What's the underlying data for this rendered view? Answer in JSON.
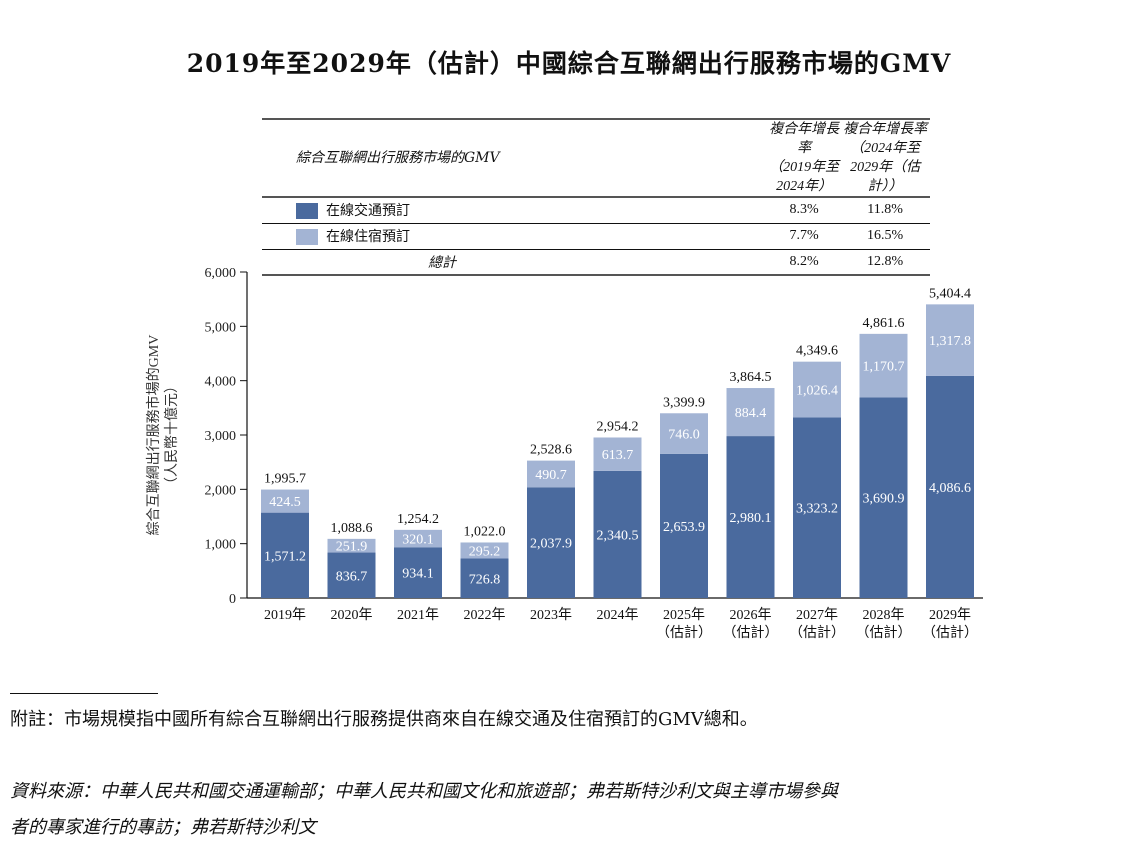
{
  "title": "2019年至2029年（估計）中國綜合互聯網出行服務市場的GMV",
  "table": {
    "headers": [
      "綜合互聯網出行服務市場的GMV",
      "複合年增長率\n（2019年至2024年）",
      "複合年增長率\n（2024年至2029年（估計））"
    ],
    "header2_line1": "複合年增長率",
    "header2_line2": "（2019年至2024年）",
    "header3_line1": "複合年增長率",
    "header3_line2": "（2024年至2029年（估計））",
    "rows": [
      {
        "label": "在線交通預訂",
        "cagr_2019_2024": "8.3%",
        "cagr_2024_2029": "11.8%",
        "color": "#4a6a9e"
      },
      {
        "label": "在線住宿預訂",
        "cagr_2019_2024": "7.7%",
        "cagr_2024_2029": "16.5%",
        "color": "#a3b4d4"
      },
      {
        "label": "總計",
        "cagr_2019_2024": "8.2%",
        "cagr_2024_2029": "12.8%"
      }
    ]
  },
  "chart_data": {
    "type": "bar",
    "stacked": true,
    "ylabel": "綜合互聯網出行服務市場的GMV",
    "ylabel_unit": "（人民幣十億元）",
    "ylim": [
      0,
      6000
    ],
    "yticks": [
      "0",
      "1,000",
      "2,000",
      "3,000",
      "4,000",
      "5,000",
      "6,000"
    ],
    "ytick_values": [
      0,
      1000,
      2000,
      3000,
      4000,
      5000,
      6000
    ],
    "categories": [
      "2019年",
      "2020年",
      "2021年",
      "2022年",
      "2023年",
      "2024年",
      "2025年",
      "2026年",
      "2027年",
      "2028年",
      "2029年"
    ],
    "category_sublabels": [
      "",
      "",
      "",
      "",
      "",
      "",
      "（估計）",
      "（估計）",
      "（估計）",
      "（估計）",
      "（估計）"
    ],
    "series": [
      {
        "name": "在線交通預訂",
        "color": "#4a6a9e",
        "values": [
          1571.2,
          836.7,
          934.1,
          726.8,
          2037.9,
          2340.5,
          2653.9,
          2980.1,
          3323.2,
          3690.9,
          4086.6
        ],
        "labels": [
          "1,571.2",
          "836.7",
          "934.1",
          "726.8",
          "2,037.9",
          "2,340.5",
          "2,653.9",
          "2,980.1",
          "3,323.2",
          "3,690.9",
          "4,086.6"
        ]
      },
      {
        "name": "在線住宿預訂",
        "color": "#a3b4d4",
        "values": [
          424.5,
          251.9,
          320.1,
          295.2,
          490.7,
          613.7,
          746.0,
          884.4,
          1026.4,
          1170.7,
          1317.8
        ],
        "labels": [
          "424.5",
          "251.9",
          "320.1",
          "295.2",
          "490.7",
          "613.7",
          "746.0",
          "884.4",
          "1,026.4",
          "1,170.7",
          "1,317.8"
        ]
      }
    ],
    "totals": [
      1995.7,
      1088.6,
      1254.2,
      1022.0,
      2528.6,
      2954.2,
      3399.9,
      3864.5,
      4349.6,
      4861.6,
      5404.4
    ],
    "total_labels": [
      "1,995.7",
      "1,088.6",
      "1,254.2",
      "1,022.0",
      "2,528.6",
      "2,954.2",
      "3,399.9",
      "3,864.5",
      "4,349.6",
      "4,861.6",
      "5,404.4"
    ],
    "grid": false
  },
  "notes": {
    "footnote": "附註：市場規模指中國所有綜合互聯網出行服務提供商來自在線交通及住宿預訂的GMV總和。",
    "source_line1": "資料來源：中華人民共和國交通運輸部；中華人民共和國文化和旅遊部；弗若斯特沙利文與主導市場參與",
    "source_line2": "者的專家進行的專訪；弗若斯特沙利文"
  }
}
